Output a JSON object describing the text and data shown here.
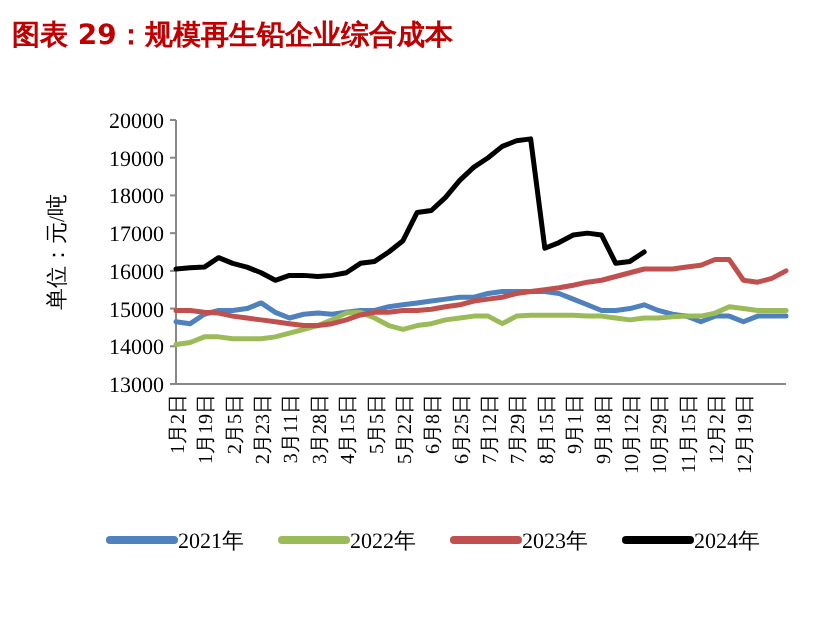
{
  "chart_data": {
    "type": "line",
    "title": "图表 29：规模再生铅企业综合成本",
    "ylabel": "单位：元/吨",
    "categories": [
      "1月2日",
      null,
      "1月19日",
      null,
      "2月5日",
      null,
      "2月23日",
      null,
      "3月11日",
      null,
      "3月28日",
      null,
      "4月15日",
      null,
      "5月5日",
      null,
      "5月22日",
      null,
      "6月8日",
      null,
      "6月25日",
      null,
      "7月12日",
      null,
      "7月29日",
      null,
      "8月15日",
      null,
      "9月1日",
      null,
      "9月18日",
      null,
      "10月12日",
      null,
      "10月29日",
      null,
      "11月15日",
      null,
      "12月2日",
      null,
      "12月19日",
      null,
      null,
      null
    ],
    "series": [
      {
        "name": "2021年",
        "color": "#4f81bd",
        "values": [
          14650,
          14600,
          14850,
          14950,
          14950,
          15000,
          15150,
          14900,
          14750,
          14850,
          14880,
          14850,
          14900,
          14950,
          14950,
          15050,
          15100,
          15150,
          15200,
          15250,
          15300,
          15300,
          15400,
          15450,
          15450,
          15450,
          15450,
          15400,
          15250,
          15100,
          14950,
          14950,
          15000,
          15100,
          14950,
          14850,
          14800,
          14650,
          14800,
          14800,
          14650,
          14800,
          14800,
          14800
        ]
      },
      {
        "name": "2022年",
        "color": "#9bbb59",
        "values": [
          14050,
          14100,
          14250,
          14250,
          14200,
          14200,
          14200,
          14250,
          14350,
          14450,
          14550,
          14700,
          14880,
          14900,
          14750,
          14550,
          14450,
          14550,
          14600,
          14700,
          14750,
          14800,
          14800,
          14600,
          14800,
          14820,
          14820,
          14820,
          14820,
          14800,
          14800,
          14750,
          14700,
          14750,
          14750,
          14780,
          14800,
          14800,
          14880,
          15050,
          15000,
          14950,
          14950,
          14950
        ]
      },
      {
        "name": "2023年",
        "color": "#c0504d",
        "values": [
          14950,
          14950,
          14900,
          14880,
          14800,
          14750,
          14700,
          14650,
          14600,
          14550,
          14550,
          14600,
          14700,
          14830,
          14900,
          14900,
          14950,
          14950,
          14980,
          15050,
          15100,
          15200,
          15250,
          15300,
          15400,
          15450,
          15500,
          15550,
          15620,
          15700,
          15750,
          15850,
          15950,
          16050,
          16050,
          16050,
          16100,
          16150,
          16300,
          16300,
          15750,
          15700,
          15800,
          16000
        ]
      },
      {
        "name": "2024年",
        "color": "#000000",
        "values": [
          16050,
          16080,
          16100,
          16350,
          16200,
          16100,
          15950,
          15750,
          15880,
          15880,
          15850,
          15880,
          15950,
          16200,
          16250,
          16500,
          16800,
          17550,
          17600,
          17950,
          18400,
          18750,
          19000,
          19300,
          19450,
          19500,
          16600,
          16750,
          16950,
          17000,
          16950,
          16200,
          16250,
          16500,
          null,
          null,
          null,
          null,
          null,
          null,
          null,
          null,
          null,
          null
        ]
      }
    ],
    "ylim": [
      13000,
      20000
    ],
    "yticks": [
      13000,
      14000,
      15000,
      16000,
      17000,
      18000,
      19000,
      20000
    ],
    "grid": false,
    "legend": "bottom",
    "marker": "none",
    "line_style": "solid"
  }
}
